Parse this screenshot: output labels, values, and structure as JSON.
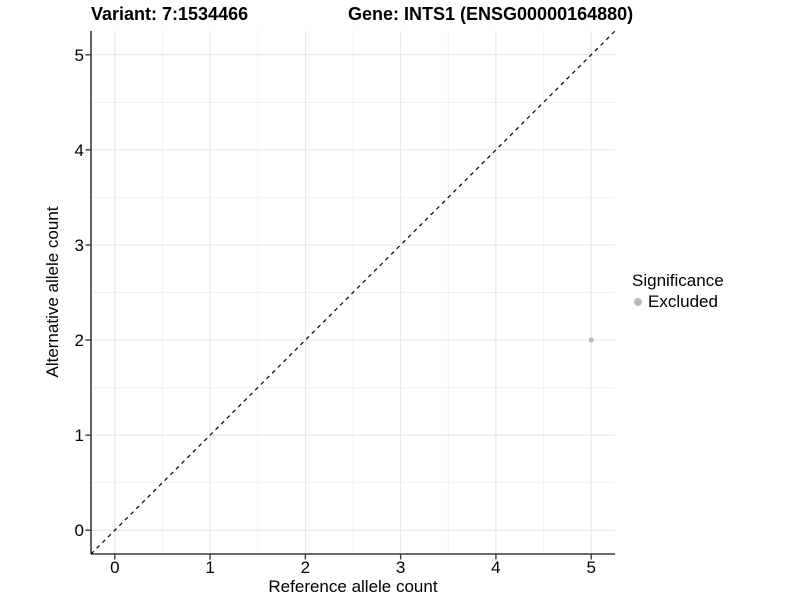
{
  "titles": {
    "variant": "Variant: 7:1534466",
    "gene": "Gene: INTS1 (ENSG00000164880)"
  },
  "chart_data": {
    "type": "scatter",
    "title_left": "Variant: 7:1534466",
    "title_right": "Gene: INTS1 (ENSG00000164880)",
    "xlabel": "Reference allele count",
    "ylabel": "Alternative allele count",
    "xlim": [
      -0.25,
      5.25
    ],
    "ylim": [
      -0.25,
      5.25
    ],
    "x_ticks": [
      0,
      1,
      2,
      3,
      4,
      5
    ],
    "y_ticks": [
      0,
      1,
      2,
      3,
      4,
      5
    ],
    "grid": "major+minor",
    "identity_line": {
      "style": "dashed",
      "color": "#000000",
      "from": -0.25,
      "to": 5.25
    },
    "series": [
      {
        "name": "Excluded",
        "color": "#b9b9b9",
        "points": [
          {
            "x": 5,
            "y": 2
          }
        ]
      }
    ],
    "legend": {
      "title": "Significance",
      "position": "right",
      "items": [
        {
          "label": "Excluded",
          "color": "#b9b9b9"
        }
      ]
    }
  }
}
